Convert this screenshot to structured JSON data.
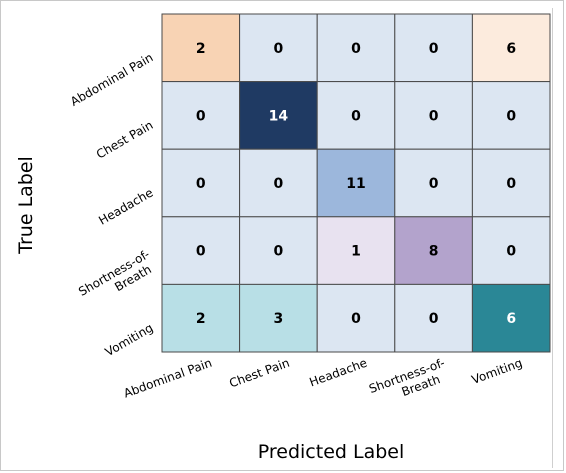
{
  "chart_data": {
    "type": "heatmap",
    "title": "",
    "xlabel": "Predicted Label",
    "ylabel": "True Label",
    "x_categories": [
      "Abdominal Pain",
      "Chest Pain",
      "Headache",
      "Shortness-of-Breath",
      "Vomiting"
    ],
    "y_categories": [
      "Abdominal Pain",
      "Chest Pain",
      "Headache",
      "Shortness-of-Breath",
      "Vomiting"
    ],
    "matrix": [
      [
        2,
        0,
        0,
        0,
        6
      ],
      [
        0,
        14,
        0,
        0,
        0
      ],
      [
        0,
        0,
        11,
        0,
        0
      ],
      [
        0,
        0,
        1,
        8,
        0
      ],
      [
        2,
        3,
        0,
        0,
        6
      ]
    ],
    "cell_colors": [
      [
        "#f8d3b4",
        "#dce6f2",
        "#dce6f2",
        "#dce6f2",
        "#fcebdd"
      ],
      [
        "#dce6f2",
        "#1f3a63",
        "#dce6f2",
        "#dce6f2",
        "#dce6f2"
      ],
      [
        "#dce6f2",
        "#dce6f2",
        "#9cb7dc",
        "#dce6f2",
        "#dce6f2"
      ],
      [
        "#dce6f2",
        "#dce6f2",
        "#e8e2f0",
        "#b3a3cc",
        "#dce6f2"
      ],
      [
        "#b8dfe6",
        "#b8dfe6",
        "#dce6f2",
        "#dce6f2",
        "#2a8796"
      ]
    ],
    "cell_text_colors": [
      [
        "#000000",
        "#000000",
        "#000000",
        "#000000",
        "#000000"
      ],
      [
        "#000000",
        "#ffffff",
        "#000000",
        "#000000",
        "#000000"
      ],
      [
        "#000000",
        "#000000",
        "#000000",
        "#000000",
        "#000000"
      ],
      [
        "#000000",
        "#000000",
        "#000000",
        "#000000",
        "#000000"
      ],
      [
        "#000000",
        "#000000",
        "#000000",
        "#000000",
        "#ffffff"
      ]
    ],
    "legend": "none",
    "grid": true
  }
}
